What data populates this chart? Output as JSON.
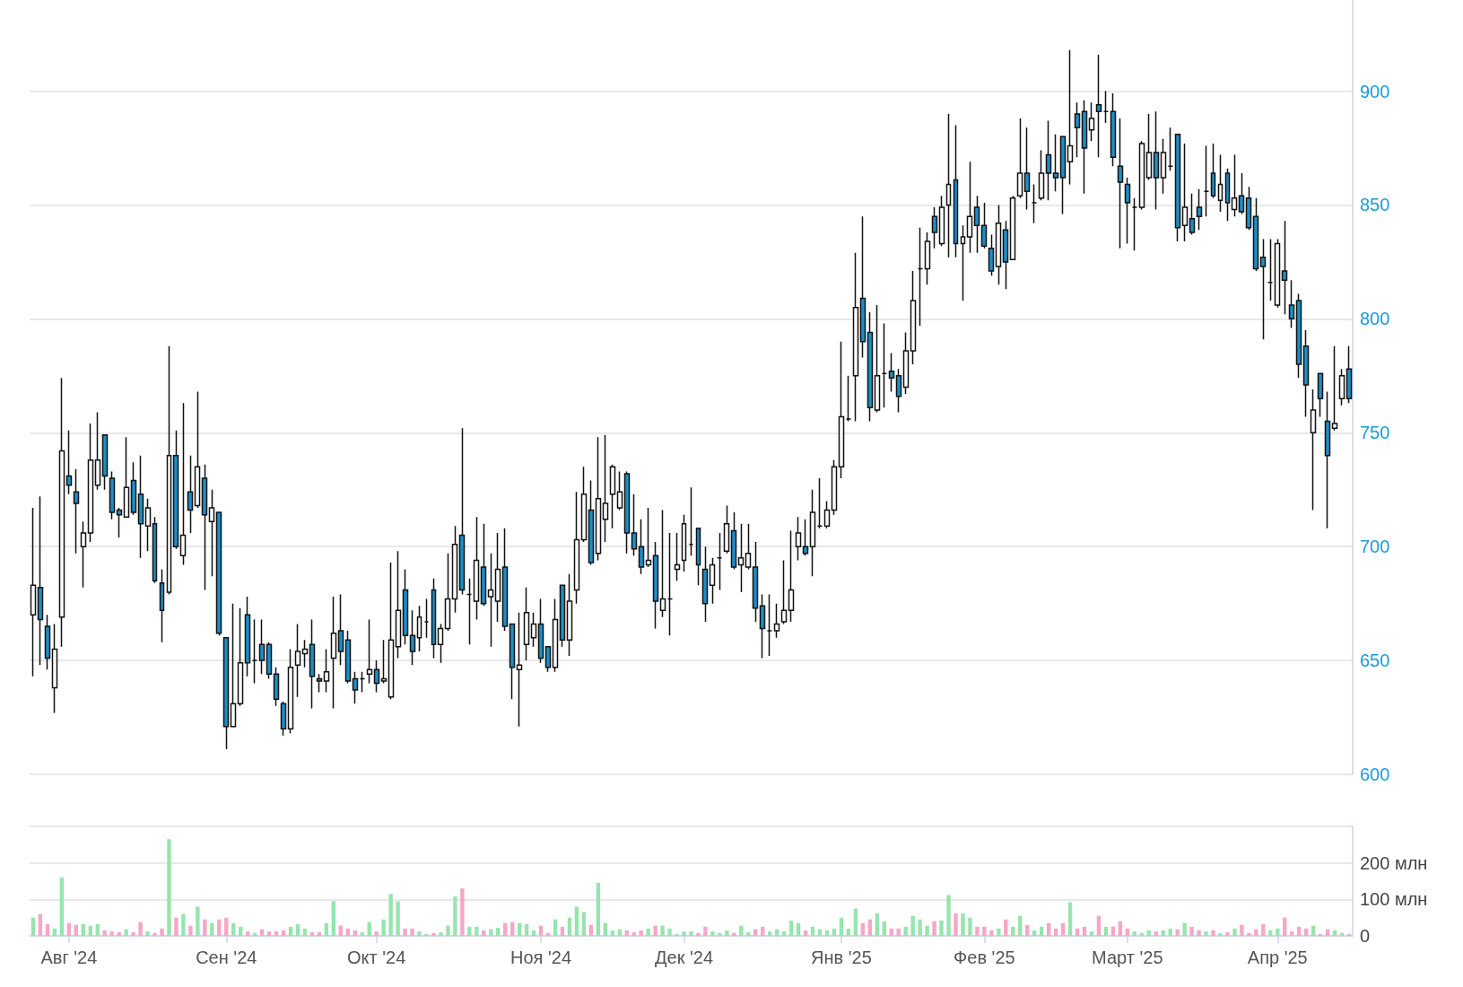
{
  "chart_data": [
    {
      "type": "candlestick",
      "ylim": [
        600,
        940
      ],
      "yticks": [
        600,
        650,
        700,
        750,
        800,
        850,
        900
      ],
      "grid": "y",
      "tick_labels": "y",
      "categories": [
        null,
        null,
        null,
        null,
        null,
        null,
        null,
        null,
        null,
        null,
        null,
        null,
        null,
        null,
        null,
        null,
        null,
        null,
        null,
        null,
        null,
        null,
        null,
        null,
        null,
        null,
        null,
        null,
        null,
        null,
        null,
        null,
        null,
        null,
        null,
        null,
        null,
        null,
        null,
        null,
        null,
        null,
        null,
        null,
        null,
        null,
        null,
        null,
        null,
        null,
        null,
        null,
        null,
        null,
        null,
        null,
        null,
        null,
        null,
        null,
        null,
        null,
        null,
        null,
        null,
        null,
        null,
        null,
        null,
        null,
        null,
        null,
        null,
        null,
        null,
        null,
        null,
        null,
        null,
        null,
        null,
        null,
        null,
        null,
        null,
        null,
        null,
        null,
        null,
        null,
        null,
        null,
        null,
        null,
        null,
        null,
        null,
        null,
        null,
        null,
        null,
        null,
        null,
        null,
        null,
        null,
        null,
        null,
        null,
        null,
        null,
        null,
        null,
        null,
        null,
        null,
        null,
        null,
        null,
        null,
        null,
        null,
        null,
        null,
        null,
        null,
        null,
        null,
        null,
        null,
        null,
        null,
        null,
        null,
        null,
        null,
        null,
        null,
        null,
        null,
        null,
        null,
        null,
        null,
        null,
        null,
        null,
        null,
        null,
        null,
        null,
        null,
        null,
        null,
        null,
        null,
        null,
        null,
        null,
        null,
        null,
        null,
        null,
        null,
        null,
        null,
        null,
        null,
        null,
        null,
        null,
        null,
        null,
        null,
        null,
        null,
        null,
        null,
        null,
        null,
        null,
        null,
        null,
        null,
        null
      ],
      "ohlc": [
        [
          670,
          717,
          643,
          683
        ],
        [
          682,
          722,
          648,
          668
        ],
        [
          665,
          670,
          646,
          651
        ],
        [
          638,
          666,
          627,
          655
        ],
        [
          669,
          774,
          656,
          742
        ],
        [
          731,
          751,
          723,
          727
        ],
        [
          724,
          734,
          697,
          719
        ],
        [
          700,
          711,
          682,
          706
        ],
        [
          706,
          754,
          702,
          738
        ],
        [
          727,
          759,
          725,
          738
        ],
        [
          749,
          749,
          725,
          731
        ],
        [
          730,
          733,
          712,
          715
        ],
        [
          716,
          717,
          704,
          714
        ],
        [
          713,
          748,
          713,
          726
        ],
        [
          729,
          737,
          714,
          715
        ],
        [
          723,
          740,
          695,
          710
        ],
        [
          709,
          721,
          698,
          717
        ],
        [
          710,
          713,
          684,
          685
        ],
        [
          684,
          690,
          658,
          672
        ],
        [
          680,
          788,
          679,
          740
        ],
        [
          740,
          751,
          699,
          700
        ],
        [
          696,
          763,
          692,
          705
        ],
        [
          724,
          740,
          706,
          716
        ],
        [
          718,
          768,
          717,
          735
        ],
        [
          730,
          736,
          681,
          714
        ],
        [
          711,
          725,
          687,
          717
        ],
        [
          715,
          715,
          661,
          662
        ],
        [
          660,
          660,
          611,
          621
        ],
        [
          621,
          675,
          621,
          631
        ],
        [
          631,
          673,
          630,
          649
        ],
        [
          670,
          678,
          643,
          649
        ],
        [
          650,
          668,
          640,
          650
        ],
        [
          657,
          668,
          644,
          650
        ],
        [
          657,
          658,
          642,
          644
        ],
        [
          644,
          647,
          630,
          633
        ],
        [
          631,
          632,
          617,
          620
        ],
        [
          620,
          655,
          618,
          647
        ],
        [
          648,
          666,
          634,
          654
        ],
        [
          653,
          659,
          647,
          655
        ],
        [
          657,
          668,
          629,
          643
        ],
        [
          642,
          644,
          636,
          641
        ],
        [
          641,
          655,
          636,
          645
        ],
        [
          651,
          678,
          629,
          662
        ],
        [
          663,
          679,
          648,
          654
        ],
        [
          659,
          663,
          640,
          641
        ],
        [
          642,
          645,
          631,
          637
        ],
        [
          642,
          645,
          636,
          642
        ],
        [
          644,
          668,
          640,
          646
        ],
        [
          646,
          650,
          636,
          640
        ],
        [
          641,
          659,
          640,
          642
        ],
        [
          634,
          693,
          633,
          659
        ],
        [
          656,
          698,
          651,
          672
        ],
        [
          681,
          690,
          657,
          661
        ],
        [
          661,
          672,
          648,
          654
        ],
        [
          660,
          674,
          654,
          669
        ],
        [
          667,
          677,
          660,
          667
        ],
        [
          681,
          686,
          651,
          657
        ],
        [
          657,
          666,
          649,
          664
        ],
        [
          664,
          697,
          663,
          677
        ],
        [
          677,
          709,
          671,
          701
        ],
        [
          705,
          752,
          679,
          681
        ],
        [
          679,
          686,
          657,
          679
        ],
        [
          676,
          713,
          668,
          694
        ],
        [
          691,
          710,
          674,
          675
        ],
        [
          678,
          697,
          656,
          681
        ],
        [
          676,
          706,
          667,
          690
        ],
        [
          691,
          708,
          663,
          665
        ],
        [
          666,
          666,
          633,
          647
        ],
        [
          646,
          671,
          621,
          648
        ],
        [
          657,
          682,
          650,
          671
        ],
        [
          660,
          671,
          656,
          666
        ],
        [
          666,
          677,
          649,
          651
        ],
        [
          656,
          656,
          645,
          647
        ],
        [
          647,
          677,
          645,
          668
        ],
        [
          683,
          683,
          656,
          659
        ],
        [
          659,
          688,
          652,
          676
        ],
        [
          681,
          724,
          675,
          703
        ],
        [
          703,
          735,
          702,
          723
        ],
        [
          716,
          729,
          692,
          693
        ],
        [
          697,
          748,
          694,
          721
        ],
        [
          712,
          749,
          702,
          719
        ],
        [
          723,
          736,
          708,
          735
        ],
        [
          717,
          733,
          716,
          724
        ],
        [
          732,
          733,
          697,
          706
        ],
        [
          706,
          723,
          696,
          699
        ],
        [
          700,
          712,
          688,
          691
        ],
        [
          692,
          717,
          691,
          694
        ],
        [
          696,
          702,
          664,
          676
        ],
        [
          672,
          716,
          669,
          677
        ],
        [
          677,
          706,
          661,
          677
        ],
        [
          690,
          706,
          685,
          692
        ],
        [
          694,
          714,
          689,
          710
        ],
        [
          701,
          726,
          696,
          701
        ],
        [
          708,
          708,
          683,
          692
        ],
        [
          690,
          700,
          667,
          675
        ],
        [
          683,
          695,
          675,
          692
        ],
        [
          695,
          706,
          681,
          695
        ],
        [
          698,
          718,
          697,
          710
        ],
        [
          707,
          715,
          690,
          691
        ],
        [
          692,
          710,
          680,
          695
        ],
        [
          691,
          710,
          690,
          697
        ],
        [
          691,
          702,
          667,
          673
        ],
        [
          674,
          679,
          651,
          664
        ],
        [
          663,
          679,
          652,
          663
        ],
        [
          663,
          675,
          660,
          666
        ],
        [
          667,
          694,
          666,
          672
        ],
        [
          672,
          707,
          667,
          681
        ],
        [
          700,
          713,
          694,
          706
        ],
        [
          700,
          712,
          696,
          697
        ],
        [
          700,
          725,
          687,
          715
        ],
        [
          709,
          730,
          708,
          709
        ],
        [
          709,
          720,
          708,
          716
        ],
        [
          716,
          738,
          714,
          735
        ],
        [
          735,
          790,
          730,
          757
        ],
        [
          756,
          775,
          755,
          756
        ],
        [
          775,
          829,
          755,
          805
        ],
        [
          809,
          845,
          783,
          790
        ],
        [
          794,
          803,
          755,
          761
        ],
        [
          760,
          806,
          759,
          775
        ],
        [
          776,
          798,
          761,
          776
        ],
        [
          777,
          785,
          768,
          774
        ],
        [
          775,
          778,
          759,
          766
        ],
        [
          770,
          794,
          767,
          786
        ],
        [
          786,
          821,
          780,
          808
        ],
        [
          822,
          840,
          797,
          822
        ],
        [
          822,
          838,
          815,
          834
        ],
        [
          845,
          849,
          831,
          838
        ],
        [
          833,
          854,
          832,
          849
        ],
        [
          850,
          890,
          827,
          859
        ],
        [
          861,
          885,
          827,
          833
        ],
        [
          833,
          841,
          808,
          836
        ],
        [
          836,
          869,
          829,
          845
        ],
        [
          849,
          854,
          829,
          841
        ],
        [
          841,
          851,
          831,
          832
        ],
        [
          831,
          837,
          819,
          821
        ],
        [
          823,
          850,
          815,
          842
        ],
        [
          839,
          843,
          813,
          825
        ],
        [
          826,
          854,
          826,
          853
        ],
        [
          854,
          888,
          853,
          864
        ],
        [
          864,
          884,
          848,
          856
        ],
        [
          851,
          859,
          842,
          851
        ],
        [
          853,
          874,
          852,
          864
        ],
        [
          872,
          887,
          852,
          864
        ],
        [
          864,
          881,
          856,
          862
        ],
        [
          880,
          880,
          846,
          862
        ],
        [
          869,
          918,
          859,
          876
        ],
        [
          890,
          895,
          871,
          884
        ],
        [
          891,
          896,
          855,
          875
        ],
        [
          883,
          895,
          878,
          888
        ],
        [
          894,
          916,
          871,
          891
        ],
        [
          891,
          900,
          886,
          891
        ],
        [
          891,
          899,
          867,
          871
        ],
        [
          867,
          888,
          831,
          860
        ],
        [
          859,
          862,
          833,
          851
        ],
        [
          849,
          853,
          830,
          849
        ],
        [
          849,
          878,
          848,
          877
        ],
        [
          862,
          890,
          861,
          873
        ],
        [
          873,
          891,
          848,
          862
        ],
        [
          862,
          879,
          855,
          873
        ],
        [
          867,
          884,
          865,
          867
        ],
        [
          881,
          881,
          834,
          840
        ],
        [
          841,
          877,
          834,
          849
        ],
        [
          844,
          855,
          837,
          838
        ],
        [
          849,
          857,
          839,
          845
        ],
        [
          856,
          876,
          845,
          856
        ],
        [
          864,
          877,
          853,
          854
        ],
        [
          852,
          872,
          847,
          859
        ],
        [
          864,
          866,
          843,
          851
        ],
        [
          848,
          872,
          845,
          853
        ],
        [
          854,
          864,
          846,
          847
        ],
        [
          853,
          858,
          839,
          840
        ],
        [
          845,
          853,
          821,
          822
        ],
        [
          827,
          835,
          791,
          823
        ],
        [
          816,
          835,
          808,
          816
        ],
        [
          806,
          835,
          805,
          833
        ],
        [
          821,
          843,
          802,
          817
        ],
        [
          806,
          817,
          796,
          800
        ],
        [
          808,
          811,
          774,
          780
        ],
        [
          788,
          795,
          757,
          771
        ],
        [
          750,
          769,
          716,
          760
        ],
        [
          776,
          776,
          757,
          765
        ],
        [
          755,
          768,
          708,
          740
        ],
        [
          752,
          788,
          751,
          754
        ],
        [
          765,
          778,
          762,
          775
        ],
        [
          778,
          788,
          763,
          765
        ]
      ],
      "colors": [
        "#ffffff",
        "#1b8fc8",
        "#1b8fc8",
        "#ffffff",
        "#ffffff",
        "#1b8fc8",
        "#1b8fc8",
        "#ffffff",
        "#ffffff",
        "#ffffff",
        "#1b8fc8",
        "#1b8fc8",
        "#1b8fc8",
        "#ffffff",
        "#1b8fc8",
        "#1b8fc8",
        "#ffffff",
        "#1b8fc8",
        "#1b8fc8",
        "#ffffff",
        "#1b8fc8",
        "#ffffff",
        "#1b8fc8",
        "#ffffff",
        "#1b8fc8",
        "#ffffff",
        "#1b8fc8",
        "#1b8fc8",
        "#ffffff",
        "#ffffff",
        "#1b8fc8",
        "#111111",
        "#1b8fc8",
        "#1b8fc8",
        "#1b8fc8",
        "#1b8fc8",
        "#ffffff",
        "#ffffff",
        "#ffffff",
        "#1b8fc8",
        "#1b8fc8",
        "#ffffff",
        "#ffffff",
        "#1b8fc8",
        "#1b8fc8",
        "#1b8fc8",
        "#111111",
        "#ffffff",
        "#1b8fc8",
        "#ffffff",
        "#ffffff",
        "#ffffff",
        "#1b8fc8",
        "#1b8fc8",
        "#ffffff",
        "#111111",
        "#1b8fc8",
        "#ffffff",
        "#ffffff",
        "#ffffff",
        "#1b8fc8",
        "#111111",
        "#ffffff",
        "#1b8fc8",
        "#ffffff",
        "#ffffff",
        "#1b8fc8",
        "#1b8fc8",
        "#ffffff",
        "#ffffff",
        "#ffffff",
        "#1b8fc8",
        "#1b8fc8",
        "#ffffff",
        "#1b8fc8",
        "#ffffff",
        "#ffffff",
        "#ffffff",
        "#1b8fc8",
        "#ffffff",
        "#ffffff",
        "#ffffff",
        "#ffffff",
        "#1b8fc8",
        "#1b8fc8",
        "#1b8fc8",
        "#ffffff",
        "#1b8fc8",
        "#ffffff",
        "#111111",
        "#ffffff",
        "#ffffff",
        "#111111",
        "#1b8fc8",
        "#1b8fc8",
        "#ffffff",
        "#111111",
        "#ffffff",
        "#1b8fc8",
        "#ffffff",
        "#ffffff",
        "#1b8fc8",
        "#1b8fc8",
        "#111111",
        "#ffffff",
        "#ffffff",
        "#ffffff",
        "#ffffff",
        "#1b8fc8",
        "#ffffff",
        "#111111",
        "#ffffff",
        "#ffffff",
        "#ffffff",
        "#111111",
        "#ffffff",
        "#1b8fc8",
        "#1b8fc8",
        "#ffffff",
        "#111111",
        "#1b8fc8",
        "#1b8fc8",
        "#ffffff",
        "#ffffff",
        "#111111",
        "#ffffff",
        "#1b8fc8",
        "#ffffff",
        "#ffffff",
        "#1b8fc8",
        "#ffffff",
        "#ffffff",
        "#1b8fc8",
        "#1b8fc8",
        "#1b8fc8",
        "#ffffff",
        "#1b8fc8",
        "#ffffff",
        "#ffffff",
        "#1b8fc8",
        "#111111",
        "#ffffff",
        "#1b8fc8",
        "#1b8fc8",
        "#1b8fc8",
        "#ffffff",
        "#1b8fc8",
        "#1b8fc8",
        "#ffffff",
        "#1b8fc8",
        "#111111",
        "#1b8fc8",
        "#1b8fc8",
        "#1b8fc8",
        "#111111",
        "#ffffff",
        "#ffffff",
        "#1b8fc8",
        "#ffffff",
        "#111111",
        "#1b8fc8",
        "#ffffff",
        "#1b8fc8",
        "#1b8fc8",
        "#111111",
        "#1b8fc8",
        "#ffffff",
        "#1b8fc8",
        "#ffffff",
        "#1b8fc8",
        "#1b8fc8",
        "#1b8fc8",
        "#1b8fc8",
        "#111111",
        "#ffffff",
        "#1b8fc8",
        "#1b8fc8",
        "#1b8fc8",
        "#1b8fc8",
        "#ffffff",
        "#1b8fc8",
        "#1b8fc8",
        "#ffffff",
        "#ffffff",
        "#1b8fc8"
      ]
    },
    {
      "type": "bar",
      "ylim": [
        0,
        300
      ],
      "yticks": [
        0,
        {
          "value": 100,
          "label": "100 млн"
        },
        {
          "value": 200,
          "label": "200 млн"
        },
        {
          "value": 300,
          "label": null
        }
      ],
      "grid": "y",
      "categories": [
        null,
        null,
        null,
        null,
        null,
        "Авг '24",
        null,
        null,
        null,
        null,
        null,
        null,
        null,
        null,
        null,
        null,
        null,
        null,
        null,
        null,
        null,
        null,
        null,
        null,
        null,
        null,
        null,
        "Сен '24",
        null,
        null,
        null,
        null,
        null,
        null,
        null,
        null,
        null,
        null,
        null,
        null,
        null,
        null,
        null,
        null,
        null,
        null,
        null,
        null,
        "Окт '24",
        null,
        null,
        null,
        null,
        null,
        null,
        null,
        null,
        null,
        null,
        null,
        null,
        null,
        null,
        null,
        null,
        null,
        null,
        null,
        null,
        null,
        null,
        "Ноя '24",
        null,
        null,
        null,
        null,
        null,
        null,
        null,
        null,
        null,
        null,
        null,
        null,
        null,
        null,
        null,
        null,
        null,
        null,
        null,
        "Дек '24",
        null,
        null,
        null,
        null,
        null,
        null,
        null,
        null,
        null,
        null,
        null,
        null,
        null,
        null,
        null,
        null,
        null,
        null,
        null,
        null,
        null,
        "Янв '25",
        null,
        null,
        null,
        null,
        null,
        null,
        null,
        null,
        null,
        null,
        null,
        null,
        null,
        null,
        null,
        null,
        null,
        null,
        null,
        "Фев '25",
        null,
        null,
        null,
        null,
        null,
        null,
        null,
        null,
        null,
        null,
        null,
        null,
        null,
        null,
        null,
        null,
        null,
        null,
        null,
        "Март '25",
        null,
        null,
        null,
        null,
        null,
        null,
        null,
        null,
        null,
        null,
        null,
        null,
        null,
        null,
        null,
        null,
        null,
        null,
        null,
        null,
        "Апр '25",
        null,
        null,
        null,
        null,
        null,
        null,
        null,
        null,
        null,
        null
      ],
      "values": [
        50,
        60,
        32,
        20,
        160,
        35,
        30,
        32,
        28,
        32,
        15,
        12,
        10,
        18,
        10,
        38,
        12,
        8,
        20,
        265,
        50,
        60,
        28,
        80,
        45,
        35,
        45,
        50,
        35,
        25,
        12,
        8,
        18,
        12,
        12,
        15,
        25,
        32,
        20,
        10,
        10,
        35,
        95,
        28,
        20,
        15,
        10,
        38,
        12,
        45,
        115,
        95,
        20,
        20,
        12,
        5,
        8,
        10,
        28,
        108,
        130,
        25,
        25,
        15,
        18,
        22,
        35,
        38,
        35,
        32,
        15,
        28,
        8,
        45,
        25,
        50,
        80,
        65,
        30,
        145,
        35,
        15,
        18,
        15,
        10,
        15,
        20,
        28,
        28,
        20,
        5,
        12,
        12,
        8,
        25,
        12,
        8,
        15,
        8,
        28,
        10,
        18,
        25,
        12,
        18,
        12,
        42,
        35,
        15,
        25,
        18,
        15,
        20,
        50,
        20,
        75,
        35,
        45,
        62,
        40,
        20,
        20,
        25,
        55,
        45,
        28,
        40,
        42,
        112,
        62,
        62,
        50,
        25,
        25,
        15,
        20,
        45,
        25,
        55,
        30,
        15,
        25,
        35,
        20,
        35,
        92,
        20,
        25,
        12,
        55,
        25,
        25,
        40,
        20,
        12,
        8,
        15,
        12,
        15,
        20,
        18,
        35,
        25,
        15,
        12,
        15,
        8,
        10,
        20,
        30,
        8,
        18,
        32,
        15,
        20,
        50,
        12,
        25,
        20,
        28,
        5,
        18,
        15,
        8,
        5
      ],
      "colors": [
        "#96e5ad",
        "#f7a6c5",
        "#f7a6c5",
        "#96e5ad",
        "#96e5ad",
        "#f7a6c5",
        "#f7a6c5",
        "#96e5ad",
        "#96e5ad",
        "#96e5ad",
        "#f7a6c5",
        "#f7a6c5",
        "#f7a6c5",
        "#96e5ad",
        "#f7a6c5",
        "#f7a6c5",
        "#96e5ad",
        "#f7a6c5",
        "#f7a6c5",
        "#96e5ad",
        "#f7a6c5",
        "#96e5ad",
        "#f7a6c5",
        "#96e5ad",
        "#f7a6c5",
        "#96e5ad",
        "#f7a6c5",
        "#f7a6c5",
        "#96e5ad",
        "#96e5ad",
        "#f7a6c5",
        "#96e5ad",
        "#f7a6c5",
        "#f7a6c5",
        "#f7a6c5",
        "#f7a6c5",
        "#96e5ad",
        "#96e5ad",
        "#96e5ad",
        "#f7a6c5",
        "#f7a6c5",
        "#96e5ad",
        "#96e5ad",
        "#f7a6c5",
        "#f7a6c5",
        "#f7a6c5",
        "#96e5ad",
        "#96e5ad",
        "#f7a6c5",
        "#96e5ad",
        "#96e5ad",
        "#96e5ad",
        "#f7a6c5",
        "#f7a6c5",
        "#96e5ad",
        "#96e5ad",
        "#f7a6c5",
        "#96e5ad",
        "#96e5ad",
        "#96e5ad",
        "#f7a6c5",
        "#96e5ad",
        "#96e5ad",
        "#f7a6c5",
        "#96e5ad",
        "#96e5ad",
        "#f7a6c5",
        "#f7a6c5",
        "#96e5ad",
        "#96e5ad",
        "#96e5ad",
        "#f7a6c5",
        "#f7a6c5",
        "#96e5ad",
        "#f7a6c5",
        "#96e5ad",
        "#96e5ad",
        "#96e5ad",
        "#f7a6c5",
        "#96e5ad",
        "#96e5ad",
        "#96e5ad",
        "#96e5ad",
        "#f7a6c5",
        "#f7a6c5",
        "#f7a6c5",
        "#96e5ad",
        "#f7a6c5",
        "#96e5ad",
        "#96e5ad",
        "#96e5ad",
        "#96e5ad",
        "#96e5ad",
        "#f7a6c5",
        "#f7a6c5",
        "#96e5ad",
        "#96e5ad",
        "#96e5ad",
        "#f7a6c5",
        "#96e5ad",
        "#96e5ad",
        "#f7a6c5",
        "#f7a6c5",
        "#96e5ad",
        "#96e5ad",
        "#96e5ad",
        "#96e5ad",
        "#96e5ad",
        "#f7a6c5",
        "#96e5ad",
        "#96e5ad",
        "#96e5ad",
        "#96e5ad",
        "#96e5ad",
        "#96e5ad",
        "#96e5ad",
        "#f7a6c5",
        "#f7a6c5",
        "#96e5ad",
        "#96e5ad",
        "#f7a6c5",
        "#f7a6c5",
        "#96e5ad",
        "#96e5ad",
        "#96e5ad",
        "#96e5ad",
        "#f7a6c5",
        "#96e5ad",
        "#96e5ad",
        "#f7a6c5",
        "#96e5ad",
        "#96e5ad",
        "#f7a6c5",
        "#f7a6c5",
        "#f7a6c5",
        "#96e5ad",
        "#f7a6c5",
        "#96e5ad",
        "#96e5ad",
        "#f7a6c5",
        "#96e5ad",
        "#96e5ad",
        "#f7a6c5",
        "#f7a6c5",
        "#f7a6c5",
        "#96e5ad",
        "#f7a6c5",
        "#f7a6c5",
        "#96e5ad",
        "#f7a6c5",
        "#96e5ad",
        "#f7a6c5",
        "#f7a6c5",
        "#f7a6c5",
        "#96e5ad",
        "#96e5ad",
        "#96e5ad",
        "#f7a6c5",
        "#96e5ad",
        "#96e5ad",
        "#f7a6c5",
        "#96e5ad",
        "#f7a6c5",
        "#f7a6c5",
        "#96e5ad",
        "#f7a6c5",
        "#96e5ad",
        "#f7a6c5",
        "#96e5ad",
        "#f7a6c5",
        "#f7a6c5",
        "#f7a6c5",
        "#f7a6c5",
        "#96e5ad",
        "#96e5ad",
        "#f7a6c5",
        "#f7a6c5",
        "#f7a6c5",
        "#f7a6c5",
        "#96e5ad",
        "#f7a6c5",
        "#f7a6c5",
        "#96e5ad",
        "#96e5ad",
        "#f7a6c5"
      ]
    }
  ]
}
